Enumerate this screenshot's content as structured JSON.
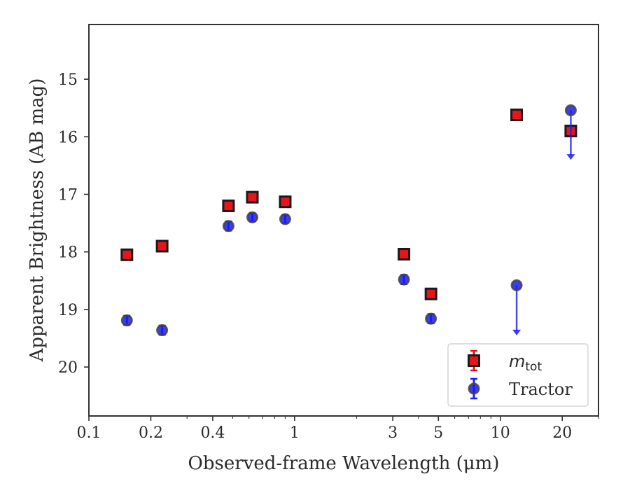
{
  "chart_data": {
    "type": "scatter",
    "xlabel": "Observed-frame Wavelength (μm)",
    "ylabel": "Apparent Brightness (AB mag)",
    "x_scale": "log",
    "y_inverted": true,
    "xlim": [
      0.1,
      30
    ],
    "ylim": [
      20.85,
      14.05
    ],
    "grid": false,
    "legend_position": "lower-right",
    "x_ticks": [
      {
        "value": 0.1,
        "label": "0.1"
      },
      {
        "value": 0.2,
        "label": "0.2"
      },
      {
        "value": 0.4,
        "label": "0.4"
      },
      {
        "value": 1,
        "label": "1"
      },
      {
        "value": 3,
        "label": "3"
      },
      {
        "value": 5,
        "label": "5"
      },
      {
        "value": 10,
        "label": "10"
      },
      {
        "value": 20,
        "label": "20"
      }
    ],
    "y_ticks": [
      {
        "value": 15,
        "label": "15"
      },
      {
        "value": 16,
        "label": "16"
      },
      {
        "value": 17,
        "label": "17"
      },
      {
        "value": 18,
        "label": "18"
      },
      {
        "value": 19,
        "label": "19"
      },
      {
        "value": 20,
        "label": "20"
      }
    ],
    "series": [
      {
        "name": "m_tot",
        "legend_label": "m",
        "legend_subscript": "tot",
        "marker": "square",
        "color": "#e8141c",
        "edge_color": "#1a1a1a",
        "points": [
          {
            "x": 0.153,
            "y": 18.05,
            "err": 0.02,
            "upper_limit": false
          },
          {
            "x": 0.227,
            "y": 17.9,
            "err": 0.02,
            "upper_limit": false
          },
          {
            "x": 0.477,
            "y": 17.2,
            "err": 0.02,
            "upper_limit": false
          },
          {
            "x": 0.623,
            "y": 17.05,
            "err": 0.02,
            "upper_limit": false
          },
          {
            "x": 0.9,
            "y": 17.13,
            "err": 0.02,
            "upper_limit": false
          },
          {
            "x": 3.4,
            "y": 18.04,
            "err": 0.02,
            "upper_limit": false
          },
          {
            "x": 4.6,
            "y": 18.73,
            "err": 0.03,
            "upper_limit": false
          },
          {
            "x": 12.0,
            "y": 15.62,
            "err": 0.03,
            "upper_limit": false
          },
          {
            "x": 22.0,
            "y": 15.9,
            "err": 0.03,
            "upper_limit": false
          }
        ]
      },
      {
        "name": "Tractor",
        "legend_label": "Tractor",
        "legend_subscript": "",
        "marker": "circle",
        "color": "#1a1aff",
        "edge_color": "#444444",
        "points": [
          {
            "x": 0.153,
            "y": 19.19,
            "err": 0.08,
            "upper_limit": false
          },
          {
            "x": 0.227,
            "y": 19.36,
            "err": 0.08,
            "upper_limit": false
          },
          {
            "x": 0.477,
            "y": 17.55,
            "err": 0.08,
            "upper_limit": false
          },
          {
            "x": 0.623,
            "y": 17.4,
            "err": 0.07,
            "upper_limit": false
          },
          {
            "x": 0.9,
            "y": 17.43,
            "err": 0.07,
            "upper_limit": false
          },
          {
            "x": 3.4,
            "y": 18.48,
            "err": 0.08,
            "upper_limit": false
          },
          {
            "x": 4.6,
            "y": 19.16,
            "err": 0.08,
            "upper_limit": false
          },
          {
            "x": 12.0,
            "y": 18.58,
            "err": 0,
            "upper_limit": true,
            "limit_to": 19.45
          },
          {
            "x": 22.0,
            "y": 15.54,
            "err": 0,
            "upper_limit": true,
            "limit_to": 16.4
          }
        ]
      }
    ]
  }
}
